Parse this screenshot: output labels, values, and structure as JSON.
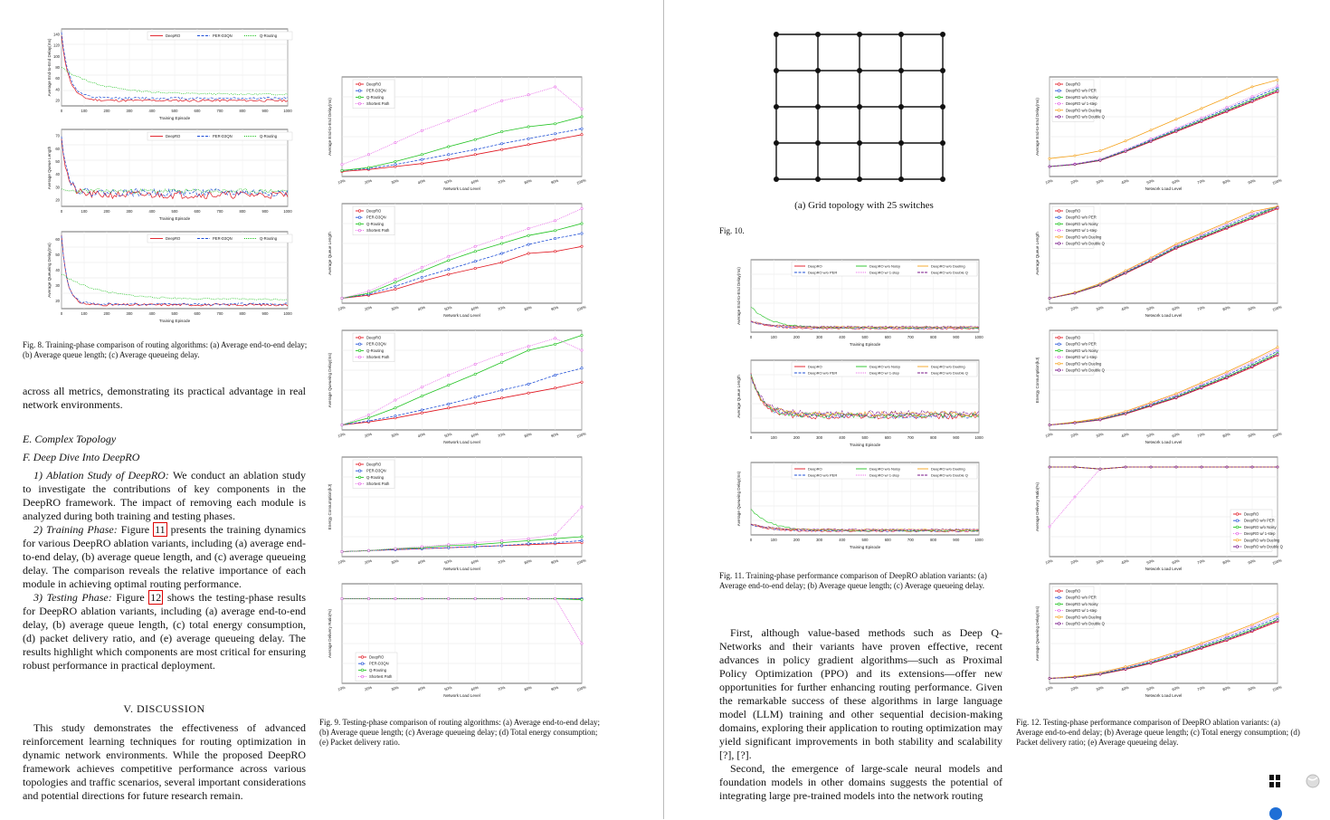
{
  "left_page": {
    "fig8": {
      "caption_label": "Fig. 8.",
      "caption_text": "Training-phase comparison of routing algorithms: (a) Average end-to-end delay; (b) Average queue length; (c) Average queueing delay.",
      "legend": [
        "DeepRO",
        "PER-D3QN",
        "Q-Routing"
      ],
      "xlabel": "Training Episode",
      "panels": [
        {
          "ylabel": "Average End-to-End Delay(ms)",
          "yticks": [
            "20",
            "40",
            "60",
            "80",
            "100",
            "120",
            "140"
          ]
        },
        {
          "ylabel": "Average Queue Length",
          "yticks": [
            "20",
            "30",
            "40",
            "50",
            "60",
            "70"
          ]
        },
        {
          "ylabel": "Average Queueing Delay(ms)",
          "yticks": [
            "20",
            "30",
            "40",
            "50",
            "60"
          ]
        }
      ],
      "xticks": [
        "0",
        "100",
        "200",
        "300",
        "400",
        "500",
        "600",
        "700",
        "800",
        "900",
        "1000"
      ]
    },
    "fig9": {
      "caption_label": "Fig. 9.",
      "caption_text": "Testing-phase comparison of routing algorithms: (a) Average end-to-end delay; (b) Average queue length; (c) Average queueing delay; (d) Total energy consumption; (e) Packet delivery ratio.",
      "legend": [
        "DeepRO",
        "PER-D3QN",
        "Q-Routing",
        "Shortest Path"
      ],
      "xlabel": "Network Load Level",
      "xticks": [
        "10%",
        "20%",
        "30%",
        "40%",
        "50%",
        "60%",
        "70%",
        "80%",
        "90%",
        "100%"
      ],
      "panels": [
        {
          "ylabel": "Average End-to-End Delay(ms)"
        },
        {
          "ylabel": "Average Queue Length"
        },
        {
          "ylabel": "Average Queueing Delay(ms)"
        },
        {
          "ylabel": "Energy Consumption(kJ)"
        },
        {
          "ylabel": "Average Delivery Ratio(%)"
        }
      ]
    },
    "tail_text": "across all metrics, demonstrating its practical advantage in real network environments.",
    "sec_e": "E. Complex Topology",
    "sec_f": "F. Deep Dive Into DeepRO",
    "p1_head": "1) Ablation Study of DeepRO:",
    "p1_body": " We conduct an ablation study to investigate the contributions of key components in the DeepRO framework. The impact of removing each module is analyzed during both training and testing phases.",
    "p2_head": "2) Training Phase:",
    "p2_pre": " Figure ",
    "p2_ref": "11",
    "p2_body": " presents the training dynamics for various DeepRO ablation variants, including (a) average end-to-end delay, (b) average queue length, and (c) average queueing delay. The comparison reveals the relative importance of each module in achieving optimal routing performance.",
    "p3_head": "3) Testing Phase:",
    "p3_pre": " Figure ",
    "p3_ref": "12",
    "p3_body": " shows the testing-phase results for DeepRO ablation variants, including (a) average end-to-end delay, (b) average queue length, (c) total energy consumption, (d) packet delivery ratio, and (e) average queueing delay. The results highlight which components are most critical for ensuring robust performance in practical deployment.",
    "discussion_title": "V. DISCUSSION",
    "discussion_body": "This study demonstrates the effectiveness of advanced reinforcement learning techniques for routing optimization in dynamic network environments. While the proposed DeepRO framework achieves competitive performance across various topologies and traffic scenarios, several important considerations and potential directions for future research remain."
  },
  "right_page": {
    "fig10": {
      "subcaption": "(a) Grid topology with 25 switches",
      "caption_label": "Fig. 10."
    },
    "fig11": {
      "caption_label": "Fig. 11.",
      "caption_text": "Training-phase performance comparison of DeepRO ablation variants: (a) Average end-to-end delay; (b) Average queue length; (c) Average queueing delay.",
      "legend": [
        "DeepRO",
        "DeepRO w/o PER",
        "DeepRO w/o Noisy",
        "DeepRO w/ 1-step",
        "DeepRO w/o Dueling",
        "DeepRO w/o Double Q"
      ],
      "xlabel": "Training Episode",
      "xticks": [
        "0",
        "100",
        "200",
        "300",
        "400",
        "500",
        "600",
        "700",
        "800",
        "900",
        "1000"
      ],
      "panels": [
        {
          "ylabel": "Average End-to-End Delay(ms)"
        },
        {
          "ylabel": "Average Queue Length"
        },
        {
          "ylabel": "Average Queueing Delay(ms)"
        }
      ]
    },
    "fig12": {
      "caption_label": "Fig. 12.",
      "caption_text": "Testing-phase performance comparison of DeepRO ablation variants: (a) Average end-to-end delay; (b) Average queue length; (c) Total energy consumption; (d) Packet delivery ratio; (e) Average queueing delay.",
      "legend": [
        "DeepRO",
        "DeepRO w/o PER",
        "DeepRO w/o Noisy",
        "DeepRO w/ 1-step",
        "DeepRO w/o Dueling",
        "DeepRO w/o Double Q"
      ],
      "xlabel": "Network Load Level",
      "xticks": [
        "10%",
        "20%",
        "30%",
        "40%",
        "50%",
        "60%",
        "70%",
        "80%",
        "90%",
        "100%"
      ],
      "panels": [
        {
          "ylabel": "Average End-to-End Delay(ms)"
        },
        {
          "ylabel": "Average Queue Length"
        },
        {
          "ylabel": "Energy Consumption(kJ)"
        },
        {
          "ylabel": "Average Delivery Ratio(%)"
        },
        {
          "ylabel": "Average Queueing Delay(ms)"
        }
      ]
    },
    "para1": "First, although value-based methods such as Deep Q-Networks and their variants have proven effective, recent advances in policy gradient algorithms—such as Proximal Policy Optimization (PPO) and its extensions—offer new opportunities for further enhancing routing performance. Given the remarkable success of these algorithms in large language model (LLM) training and other sequential decision-making domains, exploring their application to routing optimization may yield significant improvements in both stability and scalability [?], [?].",
    "para2": "Second, the emergence of large-scale neural models and foundation models in other domains suggests the potential of integrating large pre-trained models into the network routing"
  },
  "colors": {
    "red": "#e0141e",
    "blue": "#1f4fd6",
    "green": "#22c322",
    "pink": "#e86ee8",
    "orange": "#f5a21a",
    "purple": "#7a1a8a"
  },
  "toolbar": {
    "bookmark_icon": "bookmark-icon",
    "globe_icon": "globe-icon"
  }
}
